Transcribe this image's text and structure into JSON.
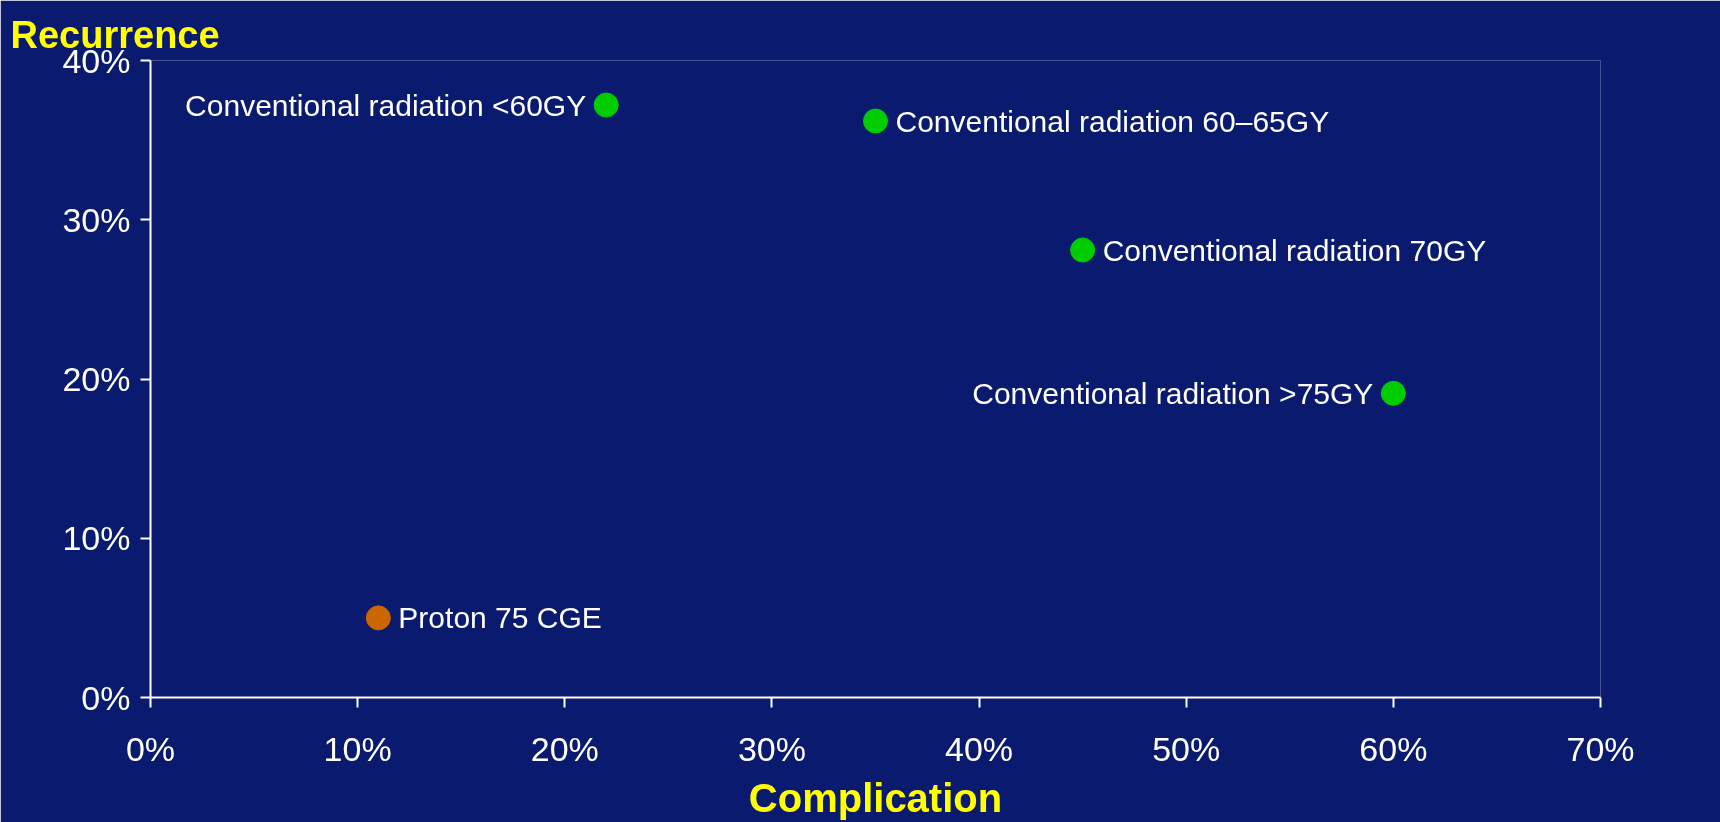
{
  "chart_data": {
    "type": "scatter",
    "xlabel": "Complication",
    "ylabel": "Recurrence",
    "series": [
      {
        "color": "#00cc00",
        "x": [
          22,
          35,
          45,
          60
        ],
        "values": [
          37.2,
          36.2,
          28.1,
          19.1
        ]
      },
      {
        "color": "#cc6600",
        "x": [
          11
        ],
        "values": [
          5.0
        ]
      }
    ],
    "xlim": [
      0,
      70
    ],
    "ylim": [
      0,
      40
    ],
    "xticks": [
      {
        "value": 0,
        "label": "0%"
      },
      {
        "value": 10,
        "label": "10%"
      },
      {
        "value": 20,
        "label": "20%"
      },
      {
        "value": 30,
        "label": "30%"
      },
      {
        "value": 40,
        "label": "40%"
      },
      {
        "value": 50,
        "label": "50%"
      },
      {
        "value": 60,
        "label": "60%"
      },
      {
        "value": 70,
        "label": "70%"
      }
    ],
    "yticks": [
      {
        "value": 0,
        "label": "0%"
      },
      {
        "value": 10,
        "label": "10%"
      },
      {
        "value": 20,
        "label": "20%"
      },
      {
        "value": 30,
        "label": "30%"
      },
      {
        "value": 40,
        "label": "40%"
      }
    ],
    "annotations": [
      {
        "text": "Conventional radiation <60GY",
        "x": 22,
        "y": 37.2
      },
      {
        "text": "Conventional radiation 60–65GY",
        "x": 35,
        "y": 36.2
      },
      {
        "text": "Conventional radiation 70GY",
        "x": 45,
        "y": 28.1
      },
      {
        "text": "Conventional radiation >75GY",
        "x": 60,
        "y": 19.1
      },
      {
        "text": "Proton 75 CGE",
        "x": 11,
        "y": 5.0
      }
    ],
    "grid": false,
    "marker": "circle"
  }
}
